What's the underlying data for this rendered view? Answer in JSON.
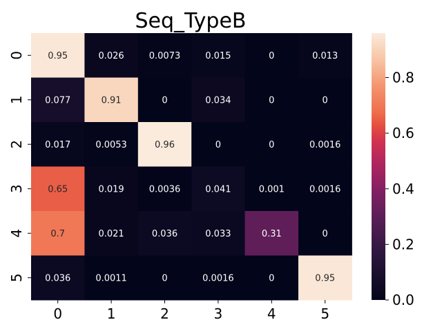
{
  "chart_data": {
    "type": "heatmap",
    "title": "Seq_TypeB",
    "x_categories": [
      "0",
      "1",
      "2",
      "3",
      "4",
      "5"
    ],
    "y_categories": [
      "0",
      "1",
      "2",
      "3",
      "4",
      "5"
    ],
    "values": [
      [
        0.95,
        0.026,
        0.0073,
        0.015,
        0,
        0.013
      ],
      [
        0.077,
        0.91,
        0,
        0.034,
        0,
        0
      ],
      [
        0.017,
        0.0053,
        0.96,
        0,
        0,
        0.0016
      ],
      [
        0.65,
        0.019,
        0.0036,
        0.041,
        0.001,
        0.0016
      ],
      [
        0.7,
        0.021,
        0.036,
        0.033,
        0.31,
        0
      ],
      [
        0.036,
        0.0011,
        0,
        0.0016,
        0,
        0.95
      ]
    ],
    "annotations": [
      [
        "0.95",
        "0.026",
        "0.0073",
        "0.015",
        "0",
        "0.013"
      ],
      [
        "0.077",
        "0.91",
        "0",
        "0.034",
        "0",
        "0"
      ],
      [
        "0.017",
        "0.0053",
        "0.96",
        "0",
        "0",
        "0.0016"
      ],
      [
        "0.65",
        "0.019",
        "0.0036",
        "0.041",
        "0.001",
        "0.0016"
      ],
      [
        "0.7",
        "0.021",
        "0.036",
        "0.033",
        "0.31",
        "0"
      ],
      [
        "0.036",
        "0.0011",
        "0",
        "0.0016",
        "0",
        "0.95"
      ]
    ],
    "vmin": 0.0,
    "vmax": 0.96,
    "colorbar_ticks": [
      0.0,
      0.2,
      0.4,
      0.6,
      0.8
    ],
    "colorbar_tick_labels": [
      "0.0",
      "0.2",
      "0.4",
      "0.6",
      "0.8"
    ],
    "colormap": "rocket"
  }
}
